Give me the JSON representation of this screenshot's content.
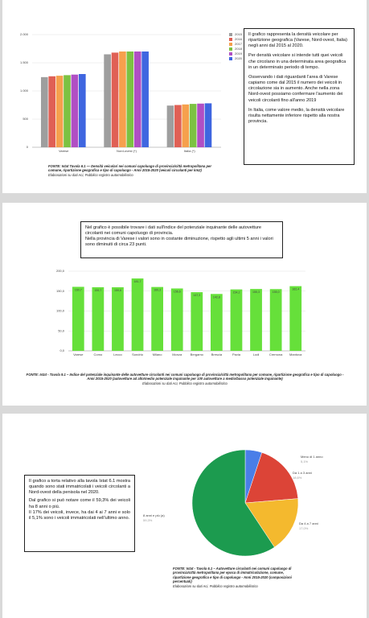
{
  "chart_data": [
    {
      "type": "bar",
      "categories": [
        "Varese",
        "Nord-ovest (*)",
        "Italia (*)"
      ],
      "series": [
        {
          "name": "2015",
          "color": "#9e9e9e",
          "values": [
            1245,
            1650,
            740
          ]
        },
        {
          "name": "2016",
          "color": "#e06055",
          "values": [
            1260,
            1680,
            750
          ]
        },
        {
          "name": "2017",
          "color": "#f6a04d",
          "values": [
            1270,
            1700,
            760
          ]
        },
        {
          "name": "2018",
          "color": "#7cc242",
          "values": [
            1280,
            1700,
            770
          ]
        },
        {
          "name": "2019",
          "color": "#b04fc4",
          "values": [
            1290,
            1700,
            775
          ]
        },
        {
          "name": "2020",
          "color": "#3f66e0",
          "values": [
            1300,
            1700,
            780
          ]
        }
      ],
      "ylim": [
        0,
        2000
      ],
      "yticks": [
        0,
        500,
        {
          "value": 1000,
          "label": "1.000"
        },
        {
          "value": 1500,
          "label": "1.500"
        },
        {
          "value": 2000,
          "label": "2.000"
        }
      ],
      "grid": true
    },
    {
      "type": "bar",
      "categories": [
        "Varese",
        "Como",
        "Lecco",
        "Sondrio",
        "Milano",
        "Monza",
        "Bergamo",
        "Brescia",
        "Pavia",
        "Lodi",
        "Cremona",
        "Mantova"
      ],
      "values": [
        160.7,
        159.7,
        159.6,
        181.7,
        160.3,
        156.6,
        147.3,
        142.8,
        154.2,
        155.3,
        155.0,
        162.4
      ],
      "value_labels": [
        "160,7",
        "159,7",
        "159,6",
        "181,7",
        "160,3",
        "156,6",
        "147,3",
        "142,8",
        "154,2",
        "155,3",
        "155,0",
        "162,4"
      ],
      "color": "#66e03a",
      "ylim": [
        0,
        200
      ],
      "yticks": [
        {
          "value": 0,
          "label": "0,0"
        },
        {
          "value": 50,
          "label": "50,0"
        },
        {
          "value": 100,
          "label": "100,0"
        },
        {
          "value": 150,
          "label": "150,0"
        },
        {
          "value": 200,
          "label": "200,0"
        }
      ],
      "grid": true
    },
    {
      "type": "pie",
      "categories": [
        "Meno di 1 anno",
        "Da 1 a 3 anni",
        "Da 4 a 7 anni",
        "8 anni e più (a)"
      ],
      "values": [
        5.1,
        18.6,
        17.0,
        59.3
      ],
      "value_labels": [
        "5,1%",
        "18,6%",
        "17,0%",
        "59,3%"
      ],
      "colors": [
        "#4a7ee8",
        "#dc4437",
        "#f4b92e",
        "#1c9b4f"
      ]
    }
  ],
  "sections": [
    {
      "description": [
        "Il grafico rappresenta la densità veicolare per ripartizione geografica (Varese, Nord-ovest, Italia) negli anni dal 2015 al 2020.",
        "Per densità veicolare si intende tutti quei veicoli che circolano in una determinata area geografica in un determinato periodo di tempo.",
        "Osservando i dati riguardanti l'area di Varese capiamo come dal 2015 il numero dei veicoli in circolazione sia in aumento. Anche nella zona Nord-ovest possiamo confermare l'aumento dei veicoli circolanti fino all'anno 2019",
        "In Italia, come valore medio, la densità veicolare risulta nettamente inferiore rispetto alla nostra provincia."
      ],
      "source": [
        "FONTE: Istat Tavola 6.1 — Densità veicolari nei comuni capoluogo di provincia/città metropolitana per comune, ripartizione geografica e tipo di capoluogo - Anni 2015-2020 (veicoli circolanti per km2)",
        "Elaborazioni su dati Aci, Pubblico registro automobilistico"
      ]
    },
    {
      "description": [
        "Nel grafico è possibile trovare i dati sull'indice del potenziale inquinante delle autovetture circolanti nei comuni capoluogo di provincia.",
        "Nella provincia di Varese i valori sono in costante diminuzione, rispetto agli ultimi 5 anni i valori sono diminuiti di circa 23 punti."
      ],
      "source": [
        "FONTE: Istat - Tavola 9.1 – Indice del potenziale inquinante delle autovetture circolanti nei comuni capoluogo di provincia/città metropolitana per comune, ripartizione geografica e tipo di capoluogo - Anni 2015-2020 (autovetture ad alto/medio potenziale inquinante per 100 autovetture a medio/basso potenziale inquinante)",
        "Elaborazioni su dati Aci, Pubblico registro automobilistico"
      ]
    },
    {
      "description": [
        "Il grafico a torta relativo alla tavola Istat 6.1 mostra quando sono stati immatricolati i veicoli circolanti a Nord-ovest della penisola nel 2020.",
        "Dal grafico si può notare come il 59,3% dei veicoli ha 8 anni o più.",
        "Il 17% dei veicoli, invece, ha dai 4 ai 7 anni e solo il 5,1% sono i veicoli immatricolati nell'ultimo anno."
      ],
      "source": [
        "FONTE: Istat - Tavola 6.1 – Autovetture circolanti nei comuni capoluogo di provincia/città metropolitana per epoca di immatricolazione, comune, ripartizione geografica e tipo di capoluogo - Anni 2015-2020 (composizioni percentuali)",
        "Elaborazioni su dati Aci, Pubblico registro automobilistico"
      ]
    }
  ]
}
